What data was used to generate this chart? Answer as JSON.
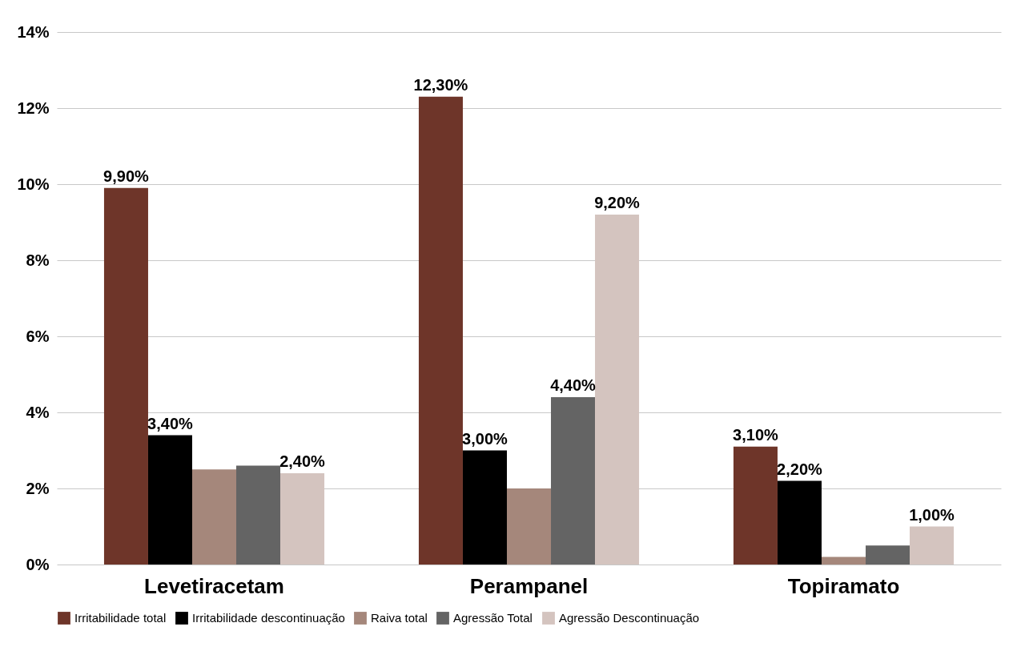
{
  "chart_data": {
    "type": "bar",
    "categories": [
      "Levetiracetam",
      "Perampanel",
      "Topiramato"
    ],
    "ylim": [
      0,
      14
    ],
    "yticks": [
      {
        "value": 0,
        "label": "0%"
      },
      {
        "value": 2,
        "label": "2%"
      },
      {
        "value": 4,
        "label": "4%"
      },
      {
        "value": 6,
        "label": "6%"
      },
      {
        "value": 8,
        "label": "8%"
      },
      {
        "value": 10,
        "label": "10%"
      },
      {
        "value": 12,
        "label": "12%"
      },
      {
        "value": 14,
        "label": "14%"
      }
    ],
    "grid": "y",
    "legend": "bottom",
    "series": [
      {
        "name": "Irritabilidade total",
        "color": "#6e3529",
        "values": [
          9.9,
          12.3,
          3.1
        ],
        "value_labels": [
          "9,90%",
          "12,30%",
          "3,10%"
        ]
      },
      {
        "name": "Irritabilidade descontinuação",
        "color": "#000000",
        "values": [
          3.4,
          3.0,
          2.2
        ],
        "value_labels": [
          "3,40%",
          "3,00%",
          "2,20%"
        ]
      },
      {
        "name": "Raiva total",
        "color": "#a5877b",
        "values": [
          2.5,
          2.0,
          0.2
        ],
        "value_labels": [
          null,
          null,
          null
        ]
      },
      {
        "name": "Agressão Total",
        "color": "#646464",
        "values": [
          2.6,
          4.4,
          0.5
        ],
        "value_labels": [
          null,
          "4,40%",
          null
        ]
      },
      {
        "name": "Agressão Descontinuação",
        "color": "#d4c4bf",
        "values": [
          2.4,
          9.2,
          1.0
        ],
        "value_labels": [
          "2,40%",
          "9,20%",
          "1,00%"
        ]
      }
    ]
  }
}
